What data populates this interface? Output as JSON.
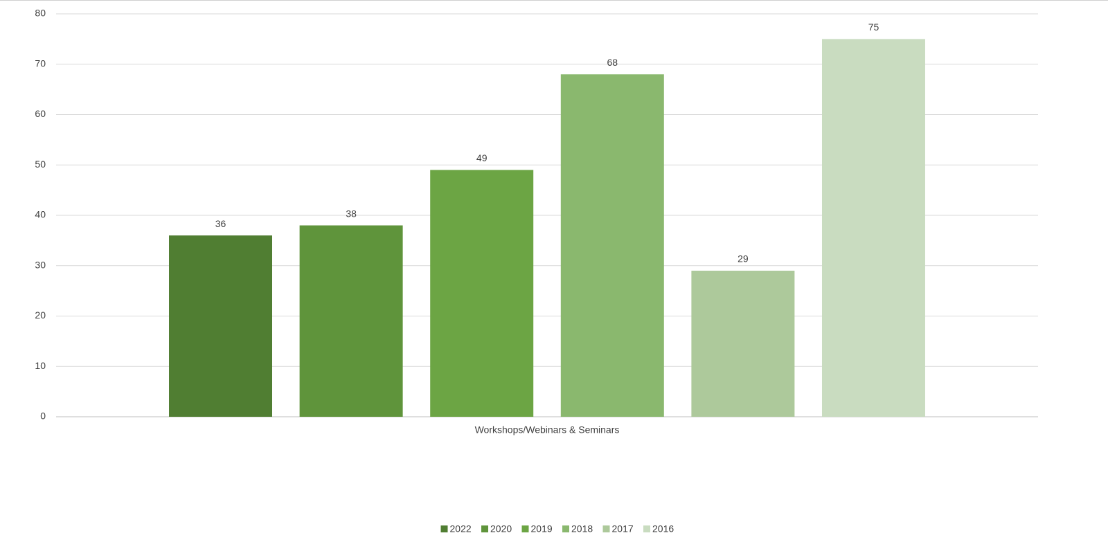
{
  "chart_data": {
    "type": "bar",
    "categories": [
      "Workshops/Webinars & Seminars"
    ],
    "series": [
      {
        "name": "2022",
        "color": "#507e32",
        "values": [
          36
        ]
      },
      {
        "name": "2020",
        "color": "#5f943b",
        "values": [
          38
        ]
      },
      {
        "name": "2019",
        "color": "#6ca544",
        "values": [
          49
        ]
      },
      {
        "name": "2018",
        "color": "#8ab86e",
        "values": [
          68
        ]
      },
      {
        "name": "2017",
        "color": "#adc99b",
        "values": [
          29
        ]
      },
      {
        "name": "2016",
        "color": "#c9dcc0",
        "values": [
          75
        ]
      }
    ],
    "ylim": [
      0,
      80
    ],
    "yticks": [
      0,
      10,
      20,
      30,
      40,
      50,
      60,
      70,
      80
    ],
    "grid": true,
    "legend": "bottom"
  }
}
